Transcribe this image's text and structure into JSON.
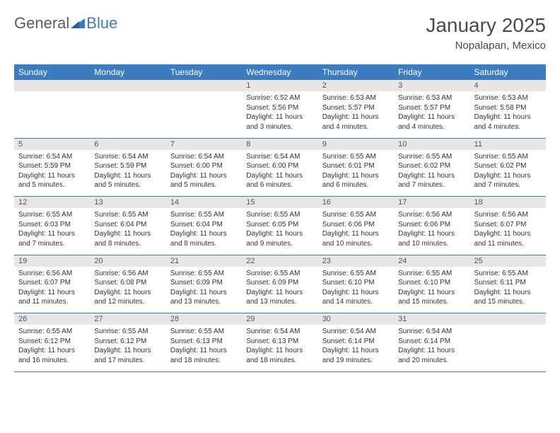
{
  "brand": {
    "part1": "General",
    "part2": "Blue"
  },
  "title": "January 2025",
  "location": "Nopalapan, Mexico",
  "header_bg": "#3b7bbf",
  "header_fg": "#ffffff",
  "daynum_bg": "#e7e7e7",
  "border_color": "#3b7bbf",
  "weekdays": [
    "Sunday",
    "Monday",
    "Tuesday",
    "Wednesday",
    "Thursday",
    "Friday",
    "Saturday"
  ],
  "weeks": [
    [
      null,
      null,
      null,
      {
        "n": "1",
        "sr": "6:52 AM",
        "ss": "5:56 PM",
        "dl": "11 hours and 3 minutes."
      },
      {
        "n": "2",
        "sr": "6:53 AM",
        "ss": "5:57 PM",
        "dl": "11 hours and 4 minutes."
      },
      {
        "n": "3",
        "sr": "6:53 AM",
        "ss": "5:57 PM",
        "dl": "11 hours and 4 minutes."
      },
      {
        "n": "4",
        "sr": "6:53 AM",
        "ss": "5:58 PM",
        "dl": "11 hours and 4 minutes."
      }
    ],
    [
      {
        "n": "5",
        "sr": "6:54 AM",
        "ss": "5:59 PM",
        "dl": "11 hours and 5 minutes."
      },
      {
        "n": "6",
        "sr": "6:54 AM",
        "ss": "5:59 PM",
        "dl": "11 hours and 5 minutes."
      },
      {
        "n": "7",
        "sr": "6:54 AM",
        "ss": "6:00 PM",
        "dl": "11 hours and 5 minutes."
      },
      {
        "n": "8",
        "sr": "6:54 AM",
        "ss": "6:00 PM",
        "dl": "11 hours and 6 minutes."
      },
      {
        "n": "9",
        "sr": "6:55 AM",
        "ss": "6:01 PM",
        "dl": "11 hours and 6 minutes."
      },
      {
        "n": "10",
        "sr": "6:55 AM",
        "ss": "6:02 PM",
        "dl": "11 hours and 7 minutes."
      },
      {
        "n": "11",
        "sr": "6:55 AM",
        "ss": "6:02 PM",
        "dl": "11 hours and 7 minutes."
      }
    ],
    [
      {
        "n": "12",
        "sr": "6:55 AM",
        "ss": "6:03 PM",
        "dl": "11 hours and 7 minutes."
      },
      {
        "n": "13",
        "sr": "6:55 AM",
        "ss": "6:04 PM",
        "dl": "11 hours and 8 minutes."
      },
      {
        "n": "14",
        "sr": "6:55 AM",
        "ss": "6:04 PM",
        "dl": "11 hours and 8 minutes."
      },
      {
        "n": "15",
        "sr": "6:55 AM",
        "ss": "6:05 PM",
        "dl": "11 hours and 9 minutes."
      },
      {
        "n": "16",
        "sr": "6:55 AM",
        "ss": "6:06 PM",
        "dl": "11 hours and 10 minutes."
      },
      {
        "n": "17",
        "sr": "6:56 AM",
        "ss": "6:06 PM",
        "dl": "11 hours and 10 minutes."
      },
      {
        "n": "18",
        "sr": "6:56 AM",
        "ss": "6:07 PM",
        "dl": "11 hours and 11 minutes."
      }
    ],
    [
      {
        "n": "19",
        "sr": "6:56 AM",
        "ss": "6:07 PM",
        "dl": "11 hours and 11 minutes."
      },
      {
        "n": "20",
        "sr": "6:56 AM",
        "ss": "6:08 PM",
        "dl": "11 hours and 12 minutes."
      },
      {
        "n": "21",
        "sr": "6:55 AM",
        "ss": "6:09 PM",
        "dl": "11 hours and 13 minutes."
      },
      {
        "n": "22",
        "sr": "6:55 AM",
        "ss": "6:09 PM",
        "dl": "11 hours and 13 minutes."
      },
      {
        "n": "23",
        "sr": "6:55 AM",
        "ss": "6:10 PM",
        "dl": "11 hours and 14 minutes."
      },
      {
        "n": "24",
        "sr": "6:55 AM",
        "ss": "6:10 PM",
        "dl": "11 hours and 15 minutes."
      },
      {
        "n": "25",
        "sr": "6:55 AM",
        "ss": "6:11 PM",
        "dl": "11 hours and 15 minutes."
      }
    ],
    [
      {
        "n": "26",
        "sr": "6:55 AM",
        "ss": "6:12 PM",
        "dl": "11 hours and 16 minutes."
      },
      {
        "n": "27",
        "sr": "6:55 AM",
        "ss": "6:12 PM",
        "dl": "11 hours and 17 minutes."
      },
      {
        "n": "28",
        "sr": "6:55 AM",
        "ss": "6:13 PM",
        "dl": "11 hours and 18 minutes."
      },
      {
        "n": "29",
        "sr": "6:54 AM",
        "ss": "6:13 PM",
        "dl": "11 hours and 18 minutes."
      },
      {
        "n": "30",
        "sr": "6:54 AM",
        "ss": "6:14 PM",
        "dl": "11 hours and 19 minutes."
      },
      {
        "n": "31",
        "sr": "6:54 AM",
        "ss": "6:14 PM",
        "dl": "11 hours and 20 minutes."
      },
      null
    ]
  ],
  "labels": {
    "sunrise": "Sunrise:",
    "sunset": "Sunset:",
    "daylight": "Daylight:"
  }
}
